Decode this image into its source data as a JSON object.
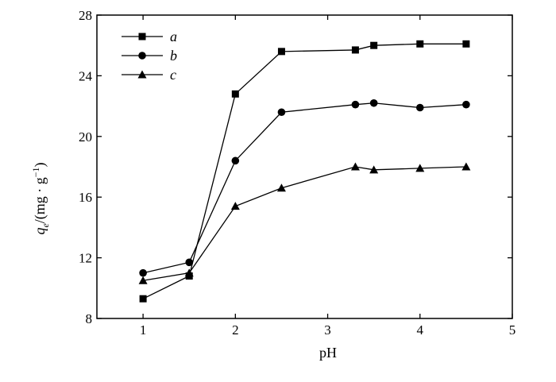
{
  "chart_data": {
    "type": "line",
    "xlabel": "pH",
    "ylabel": {
      "q": "q",
      "sub": "e",
      "rest": "/(mg · g",
      "sup": "−1",
      "close": ")"
    },
    "xlim": [
      0.5,
      5
    ],
    "ylim": [
      8,
      28
    ],
    "xticks": [
      1,
      2,
      3,
      4,
      5
    ],
    "yticks": [
      8,
      12,
      16,
      20,
      24,
      28
    ],
    "grid": false,
    "legend_position": "top-left",
    "series": [
      {
        "name": "a",
        "marker": "square",
        "x": [
          1,
          1.5,
          2,
          2.5,
          3.3,
          3.5,
          4,
          4.5
        ],
        "y": [
          9.3,
          10.8,
          22.8,
          25.6,
          25.7,
          26.0,
          26.1,
          26.1
        ]
      },
      {
        "name": "b",
        "marker": "circle",
        "x": [
          1,
          1.5,
          2,
          2.5,
          3.3,
          3.5,
          4,
          4.5
        ],
        "y": [
          11.0,
          11.7,
          18.4,
          21.6,
          22.1,
          22.2,
          21.9,
          22.1
        ]
      },
      {
        "name": "c",
        "marker": "triangle",
        "x": [
          1,
          1.5,
          2,
          2.5,
          3.3,
          3.5,
          4,
          4.5
        ],
        "y": [
          10.5,
          11.0,
          15.4,
          16.6,
          18.0,
          17.8,
          17.9,
          18.0
        ]
      }
    ]
  }
}
